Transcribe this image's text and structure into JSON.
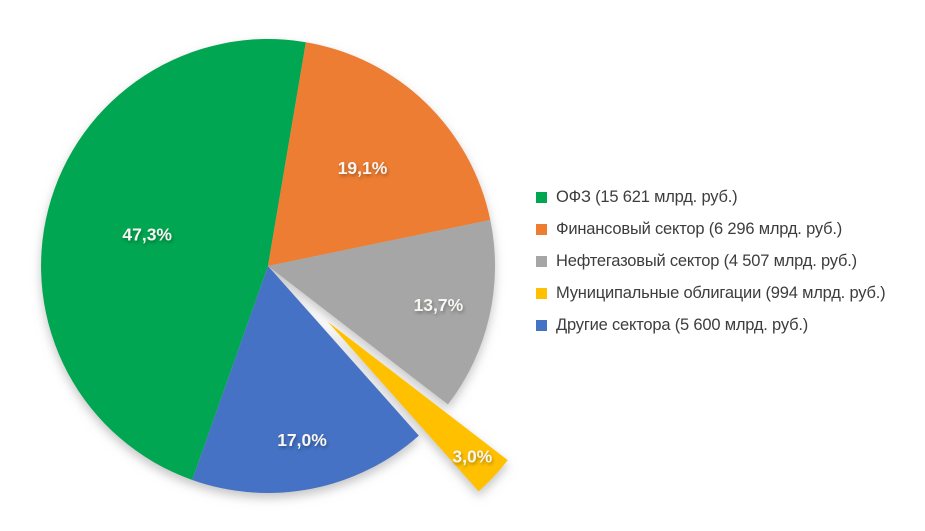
{
  "page": {
    "background_color": "#ffffff"
  },
  "chart_data": {
    "type": "pie",
    "title": "",
    "unit": "млрд. руб.",
    "legend_position": "right",
    "categories": [
      "ОФЗ",
      "Финансовый сектор",
      "Нефтегазовый сектор",
      "Муниципальные облигации",
      "Другие сектора"
    ],
    "values": [
      15621,
      6296,
      4507,
      994,
      5600
    ],
    "percents": [
      47.3,
      19.1,
      13.7,
      3.0,
      17.0
    ],
    "percent_labels": [
      "47,3%",
      "19,1%",
      "13,7%",
      "3,0%",
      "17,0%"
    ],
    "colors": [
      "#00a651",
      "#ed7d31",
      "#a6a6a6",
      "#ffc000",
      "#4472c4"
    ],
    "legend_labels": [
      "ОФЗ (15 621 млрд. руб.)",
      "Финансовый сектор (6 296 млрд. руб.)",
      "Нефтегазовый сектор (4 507 млрд. руб.)",
      "Муниципальные облигации (994 млрд. руб.)",
      "Другие сектора (5 600 млрд. руб.)"
    ],
    "slice_label_color": "#f8f6f2",
    "legend_text_color": "#3d3d3d",
    "start_angle_deg": 199.5,
    "clockwise": true,
    "exploded_slice_index": 3,
    "explode_offset_frac": 0.36,
    "label_radius_fracs": [
      0.55,
      0.6,
      0.77,
      0.87,
      0.78
    ]
  }
}
